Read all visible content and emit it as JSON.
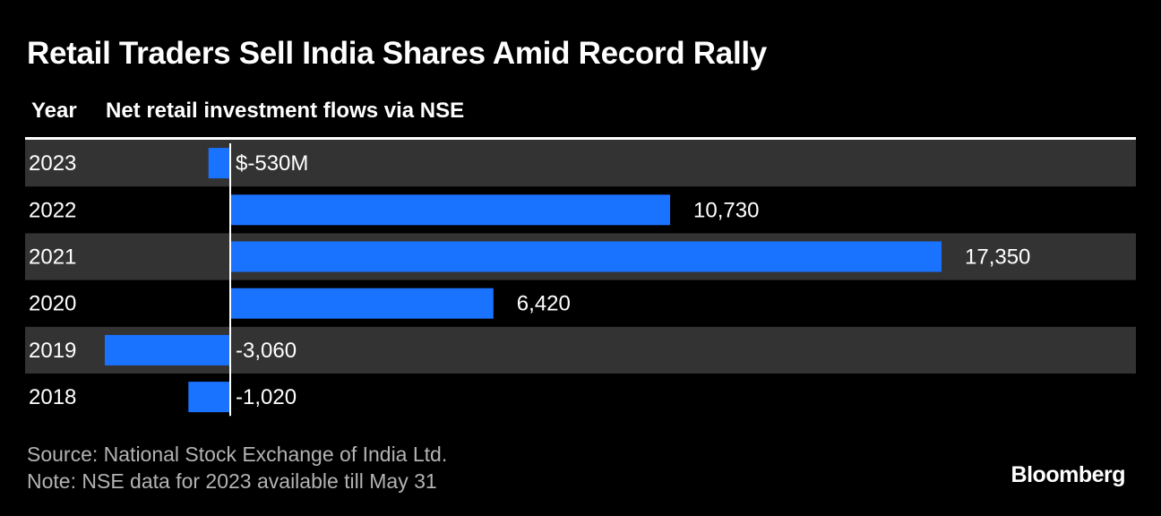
{
  "header": {
    "title": "Retail Traders Sell India Shares Amid Record Rally",
    "col_year": "Year",
    "col_flow": "Net retail investment flows via NSE"
  },
  "footer": {
    "source": "Source: National Stock Exchange of India Ltd.",
    "note": "Note: NSE data for 2023 available till May 31",
    "brand": "Bloomberg"
  },
  "colors": {
    "background": "#000000",
    "band": "#333333",
    "bar": "#1a73ff",
    "text": "#ffffff",
    "muted": "#b3b3b3"
  },
  "chart_data": {
    "type": "bar",
    "orientation": "horizontal",
    "categories": [
      "2023",
      "2022",
      "2021",
      "2020",
      "2019",
      "2018"
    ],
    "values": [
      -530,
      10730,
      17350,
      6420,
      -3060,
      -1020
    ],
    "value_labels": [
      "$-530M",
      "10,730",
      "17,350",
      "6,420",
      "-3,060",
      "-1,020"
    ],
    "unit": "$M",
    "grid": false
  }
}
